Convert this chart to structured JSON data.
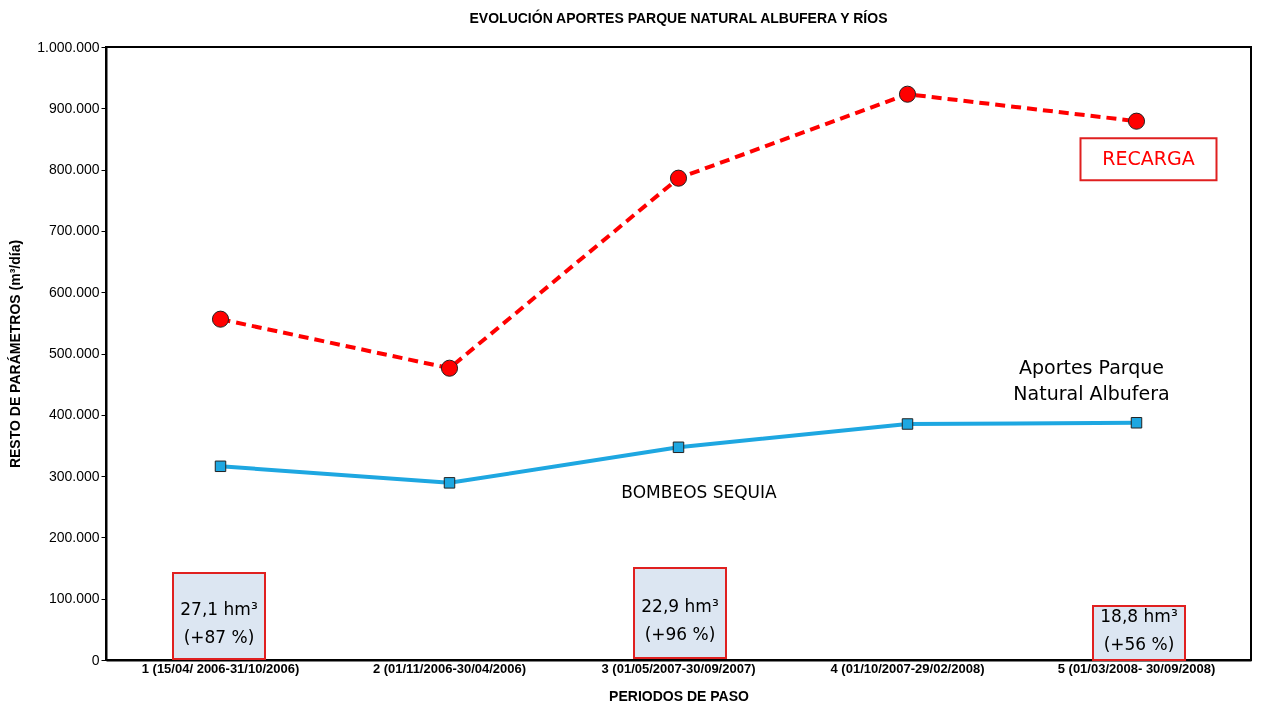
{
  "chart_data": {
    "type": "line",
    "title": "EVOLUCIÓN  APORTES PARQUE NATURAL ALBUFERA Y RÍOS",
    "xlabel": "PERIODOS DE PASO",
    "ylabel": "RESTO DE PARÁMETROS (m³/día)",
    "categories": [
      "1  (15/04/ 2006-31/10/2006)",
      "2  (01/11/2006-30/04/2006)",
      "3  (01/05/2007-30/09/2007)",
      "4  (01/10/2007-29/02/2008)",
      "5  (01/03/2008- 30/09/2008)"
    ],
    "series": [
      {
        "name": "RECARGA",
        "color": "#ff0000",
        "marker": "circle",
        "line_style": "dashed",
        "values": [
          556000,
          476000,
          786000,
          923000,
          879000
        ]
      },
      {
        "name": "Aportes Parque Natural Albufera",
        "color": "#1ea7e1",
        "marker": "square",
        "line_style": "solid",
        "values": [
          316000,
          289000,
          347000,
          385000,
          387000
        ]
      }
    ],
    "ylim": [
      0,
      1000000
    ],
    "yticks": [
      0,
      {
        "value": 100000,
        "label": "100.000"
      },
      {
        "value": 200000,
        "label": "200.000"
      },
      {
        "value": 300000,
        "label": "300.000"
      },
      {
        "value": 400000,
        "label": "400.000"
      },
      {
        "value": 500000,
        "label": "500.000"
      },
      {
        "value": 600000,
        "label": "600.000"
      },
      {
        "value": 700000,
        "label": "700.000"
      },
      {
        "value": 800000,
        "label": "800.000"
      },
      {
        "value": 900000,
        "label": "900.000"
      },
      {
        "value": 1000000,
        "label": "1.000.000"
      }
    ],
    "grid": false,
    "legend": false,
    "annotations": [
      "BOMBEOS SEQUIA",
      "27,1 hm³\n(+87 %)",
      "22,9 hm³\n(+96 %)",
      "18,8 hm³\n(+56 %)"
    ]
  }
}
